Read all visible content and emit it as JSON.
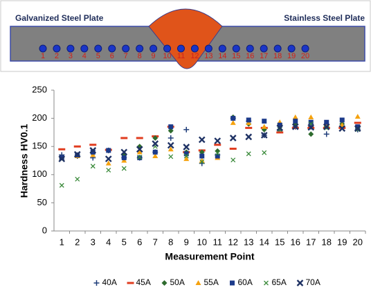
{
  "diagram": {
    "left_label": "Galvanized Steel Plate",
    "right_label": "Stainless Steel Plate",
    "points": [
      "1",
      "2",
      "3",
      "4",
      "5",
      "6",
      "7",
      "8",
      "9",
      "10",
      "11",
      "12",
      "13",
      "14",
      "15",
      "16",
      "17",
      "18",
      "19",
      "20"
    ]
  },
  "chart_data": {
    "type": "scatter",
    "y_label": "Hardness  HV0.1",
    "x_label": "Measurement Point",
    "categories": [
      1,
      2,
      3,
      4,
      5,
      6,
      7,
      8,
      9,
      10,
      11,
      12,
      13,
      14,
      15,
      16,
      17,
      18,
      19,
      20
    ],
    "ylim": [
      0,
      250
    ],
    "yticks": [
      0,
      50,
      100,
      150,
      200,
      250
    ],
    "legend": "bottom",
    "series": [
      {
        "name": "40A",
        "color": "#1f3d7a",
        "marker": "plus",
        "values": [
          135,
          133,
          130,
          143,
          130,
          130,
          140,
          165,
          180,
          120,
          135,
          200,
          195,
          170,
          180,
          185,
          185,
          172,
          185,
          180
        ]
      },
      {
        "name": "45A",
        "color": "#e03c1f",
        "marker": "dash",
        "values": [
          145,
          150,
          153,
          144,
          165,
          165,
          168,
          185,
          140,
          143,
          153,
          146,
          183,
          183,
          175,
          183,
          183,
          183,
          183,
          192
        ]
      },
      {
        "name": "50A",
        "color": "#2e6b2e",
        "marker": "diamond",
        "values": [
          130,
          135,
          138,
          143,
          135,
          150,
          165,
          178,
          140,
          140,
          142,
          202,
          190,
          180,
          190,
          190,
          172,
          185,
          190,
          183
        ]
      },
      {
        "name": "55A",
        "color": "#f5a20f",
        "marker": "triangle",
        "values": [
          130,
          133,
          135,
          120,
          125,
          140,
          133,
          145,
          128,
          125,
          130,
          192,
          192,
          185,
          193,
          202,
          202,
          190,
          188,
          203
        ]
      },
      {
        "name": "60A",
        "color": "#1c3a8a",
        "marker": "square",
        "values": [
          130,
          135,
          140,
          143,
          130,
          130,
          140,
          185,
          137,
          133,
          133,
          200,
          197,
          195,
          188,
          195,
          193,
          193,
          197,
          185
        ]
      },
      {
        "name": "65A",
        "color": "#3a8a3a",
        "marker": "x",
        "values": [
          81,
          92,
          115,
          108,
          111,
          131,
          150,
          132,
          133,
          123,
          138,
          126,
          137,
          139,
          180,
          185,
          190,
          183,
          183,
          180
        ]
      },
      {
        "name": "70A",
        "color": "#1f3264",
        "marker": "cross",
        "values": [
          128,
          136,
          143,
          128,
          140,
          145,
          155,
          152,
          149,
          162,
          160,
          165,
          167,
          170,
          183,
          185,
          184,
          185,
          182,
          182
        ]
      }
    ]
  }
}
